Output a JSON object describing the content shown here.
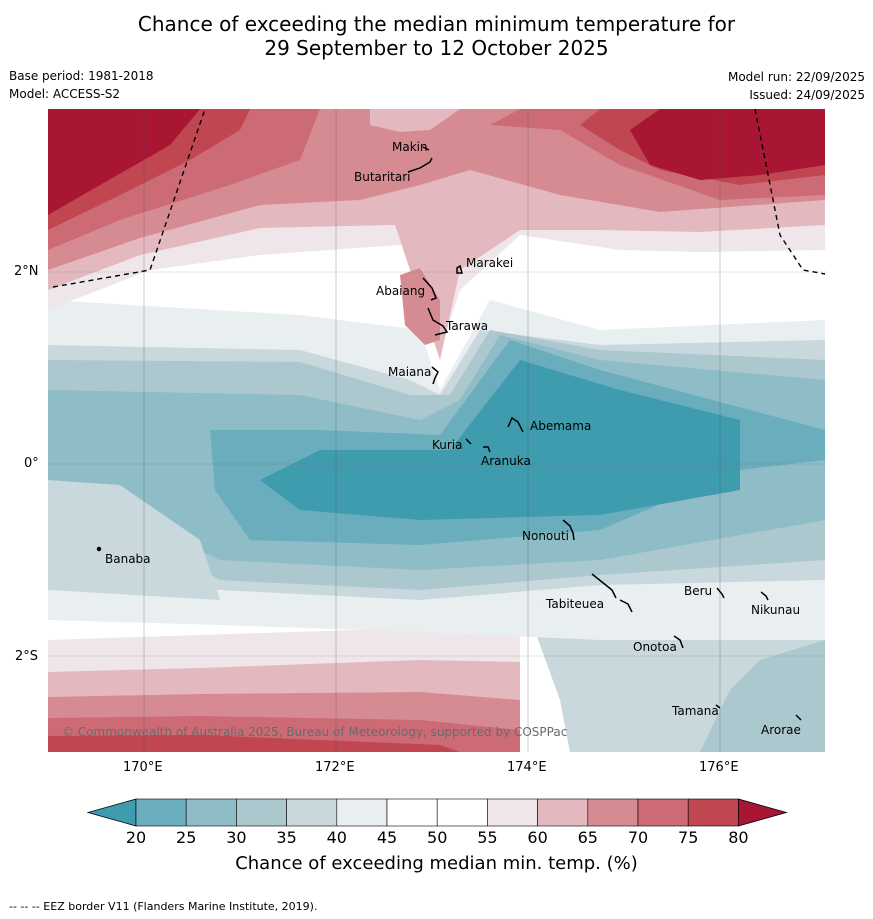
{
  "title_line1": "Chance of exceeding the median minimum temperature for",
  "title_line2": "29 September to 12 October 2025",
  "base_period": "Base period: 1981-2018",
  "model": "Model: ACCESS-S2",
  "model_run": "Model run: 22/09/2025",
  "issued": "Issued: 24/09/2025",
  "lon_labels": [
    "170°E",
    "172°E",
    "174°E",
    "176°E"
  ],
  "lat_labels": [
    "2°N",
    "0°",
    "2°S"
  ],
  "islands": [
    "Makin",
    "Butaritari",
    "Marakei",
    "Abaiang",
    "Tarawa",
    "Maiana",
    "Abemama",
    "Kuria",
    "Aranuka",
    "Nonouti",
    "Banaba",
    "Beru",
    "Nikunau",
    "Tabiteuea",
    "Onotoa",
    "Tamana",
    "Arorae"
  ],
  "copyright": "© Commonwealth of Australia 2025, Bureau of Meteorology, supported by COSPPac",
  "colorbar": {
    "ticks": [
      "20",
      "25",
      "30",
      "35",
      "40",
      "45",
      "50",
      "55",
      "60",
      "65",
      "70",
      "75",
      "80"
    ],
    "colors": [
      "#3f9caf",
      "#6aaebd",
      "#8ebcc7",
      "#abc8ce",
      "#c8d8dc",
      "#e9eef1",
      "#ffffff",
      "#ffffff",
      "#efe6e9",
      "#e3b9bf",
      "#d68b93",
      "#cc6b75",
      "#c04652",
      "#a81633"
    ],
    "title": "Chance of exceeding median min. temp. (%)"
  },
  "footnote": "--  --  -- EEZ border V11 (Flanders Marine Institute, 2019)."
}
